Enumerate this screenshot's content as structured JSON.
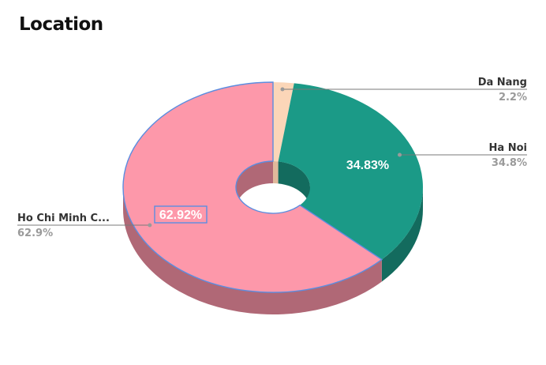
{
  "title": "Location",
  "chart_data": {
    "type": "pie",
    "title": "Location",
    "donut": true,
    "three_d": true,
    "categories": [
      "Da Nang",
      "Ha Noi",
      "Ho Chi Minh C..."
    ],
    "values": [
      2.25,
      34.83,
      62.92
    ],
    "slices": [
      {
        "name": "Da Nang",
        "value": 2.25,
        "label": "2.2%",
        "inner_label": "",
        "color": "#fbd6b8",
        "side_color": "#e0b99b"
      },
      {
        "name": "Ha Noi",
        "value": 34.83,
        "label": "34.8%",
        "inner_label": "34.83%",
        "color": "#1b9a87",
        "side_color": "#136b5e"
      },
      {
        "name": "Ho Chi Minh C...",
        "value": 62.92,
        "label": "62.9%",
        "inner_label": "62.92%",
        "color": "#fd98aa",
        "side_color": "#b06876"
      }
    ],
    "highlight_color": "#5b8de0",
    "legend": "none"
  }
}
